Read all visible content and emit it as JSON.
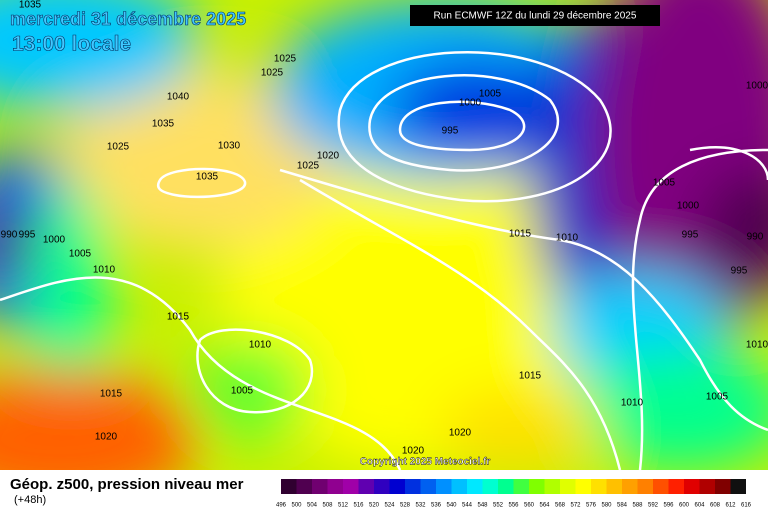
{
  "header": {
    "date": "mercredi 31 décembre 2025",
    "time": "13:00 locale",
    "run": "Run ECMWF 12Z du lundi 29 décembre 2025"
  },
  "isobar_labels": [
    1035,
    1040,
    1035,
    1025,
    1030,
    1035,
    1025,
    1025,
    1020,
    1025,
    1005,
    1000,
    995,
    1015,
    1010,
    1005,
    1000,
    995,
    990,
    995,
    1000,
    990,
    995,
    1000,
    1005,
    1010,
    1015,
    1010,
    1005,
    1015,
    1020,
    1020,
    1020,
    1015,
    1010,
    1005,
    1010
  ],
  "copyright": "Copyright 2025 Meteociel.fr",
  "legend": {
    "title": "Géop. z500, pression niveau mer",
    "subtitle": "(+48h)",
    "labels": [
      496,
      500,
      504,
      508,
      512,
      516,
      520,
      524,
      528,
      532,
      536,
      540,
      544,
      548,
      552,
      556,
      560,
      564,
      568,
      572,
      576,
      580,
      584,
      588,
      592,
      596,
      600,
      604,
      608,
      612,
      616
    ],
    "colors": [
      "#300030",
      "#500050",
      "#700070",
      "#900090",
      "#a000a8",
      "#6000b0",
      "#3000c0",
      "#0000d0",
      "#0030e0",
      "#0060f0",
      "#0090ff",
      "#00c0ff",
      "#00e8ff",
      "#00ffd0",
      "#00ff90",
      "#40ff40",
      "#80ff00",
      "#b0ff00",
      "#e0ff00",
      "#ffff00",
      "#ffe000",
      "#ffc000",
      "#ffa000",
      "#ff8000",
      "#ff5000",
      "#ff2000",
      "#e00000",
      "#b00000",
      "#800000",
      "#101010"
    ]
  }
}
